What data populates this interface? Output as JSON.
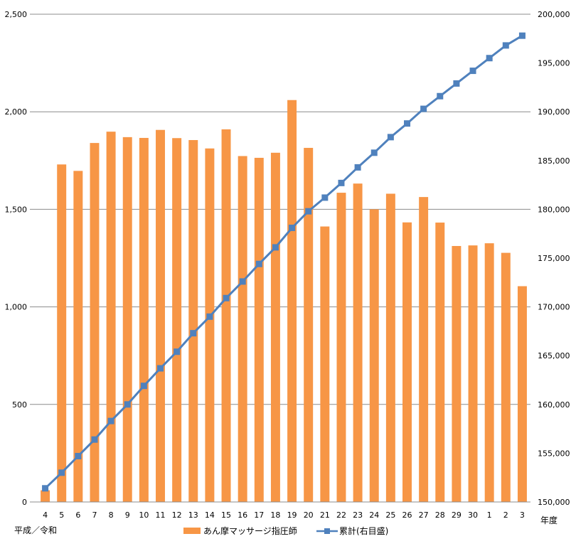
{
  "chart_data": {
    "type": "bar",
    "x_note_left": "平成／令和",
    "x_note_right": "年度",
    "categories": [
      "4",
      "5",
      "6",
      "7",
      "8",
      "9",
      "10",
      "11",
      "12",
      "13",
      "14",
      "15",
      "16",
      "17",
      "18",
      "19",
      "20",
      "21",
      "22",
      "23",
      "24",
      "25",
      "26",
      "27",
      "28",
      "29",
      "30",
      "1",
      "2",
      "3"
    ],
    "series": [
      {
        "name": "あん摩マッサージ指圧師",
        "type": "bar",
        "axis": "left",
        "color": "#f79646",
        "values": [
          60,
          1730,
          1697,
          1840,
          1898,
          1870,
          1866,
          1907,
          1865,
          1855,
          1812,
          1910,
          1773,
          1764,
          1790,
          2060,
          1815,
          1412,
          1585,
          1632,
          1500,
          1580,
          1433,
          1563,
          1432,
          1312,
          1315,
          1326,
          1277,
          1106
        ]
      },
      {
        "name": "累計(右目盛)",
        "type": "line",
        "axis": "right",
        "color": "#4f81bd",
        "values": [
          151400,
          153000,
          154700,
          156400,
          158300,
          160000,
          161900,
          163700,
          165400,
          167300,
          169000,
          170900,
          172600,
          174400,
          176100,
          178100,
          179800,
          181200,
          182700,
          184300,
          185800,
          187400,
          188800,
          190300,
          191600,
          192900,
          194200,
          195500,
          196800,
          197800
        ]
      }
    ],
    "ylim_left": [
      0,
      2500
    ],
    "ylim_right": [
      150000,
      200000
    ],
    "yticks_left": [
      "0",
      "500",
      "1,000",
      "1,500",
      "2,000",
      "2,500"
    ],
    "yticks_right": [
      "150,000",
      "155,000",
      "160,000",
      "165,000",
      "170,000",
      "175,000",
      "180,000",
      "185,000",
      "190,000",
      "195,000",
      "200,000"
    ],
    "grid": true,
    "legend_position": "bottom"
  }
}
